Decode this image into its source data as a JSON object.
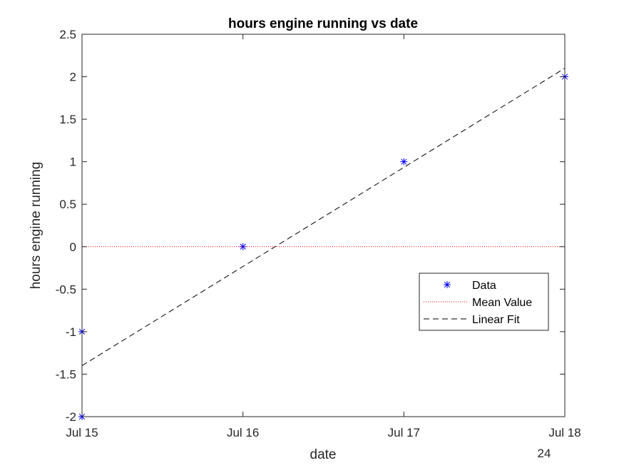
{
  "chart_data": {
    "type": "line",
    "title": "hours engine running vs date",
    "xlabel": "date",
    "ylabel": "hours engine running",
    "x_tick_labels": [
      "Jul 15",
      "Jul 16",
      "Jul 17",
      "Jul 18"
    ],
    "x_secondary_label": "24",
    "y_tick_labels": [
      "-2",
      "-1.5",
      "-1",
      "-0.5",
      "0",
      "0.5",
      "1",
      "1.5",
      "2",
      "2.5"
    ],
    "xlim": [
      "Jul 15",
      "Jul 18"
    ],
    "ylim": [
      -2,
      2.5
    ],
    "y_ticks": [
      -2,
      -1.5,
      -1,
      -0.5,
      0,
      0.5,
      1,
      1.5,
      2,
      2.5
    ],
    "grid": false,
    "legend_position": "lower-right",
    "series": [
      {
        "name": "Data",
        "style": "markers",
        "marker": "asterisk",
        "color": "#0000ff",
        "points": [
          {
            "x": "Jul 15",
            "y": -1
          },
          {
            "x": "Jul 15",
            "y": -2
          },
          {
            "x": "Jul 16",
            "y": 0
          },
          {
            "x": "Jul 17",
            "y": 1
          },
          {
            "x": "Jul 18",
            "y": 2
          }
        ]
      },
      {
        "name": "Mean Value",
        "style": "dotted",
        "color": "#ff0000",
        "points": [
          {
            "x": "Jul 15",
            "y": 0
          },
          {
            "x": "Jul 18",
            "y": 0
          }
        ]
      },
      {
        "name": "Linear Fit",
        "style": "dashed",
        "color": "#000000",
        "points": [
          {
            "x": "Jul 15",
            "y": -1.4
          },
          {
            "x": "Jul 18",
            "y": 2.1
          }
        ]
      }
    ]
  }
}
